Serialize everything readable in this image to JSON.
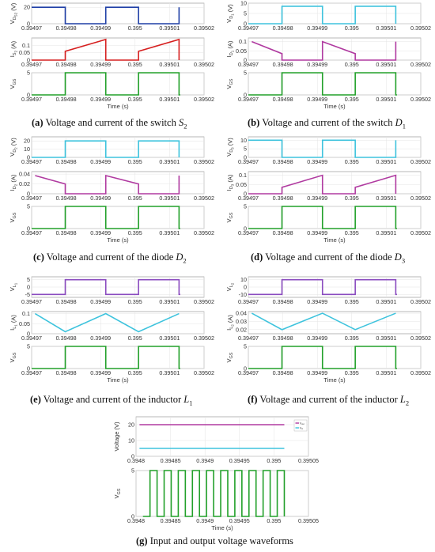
{
  "chart_data": [
    {
      "type": "line",
      "panel": "a",
      "plot": "top",
      "ylabel": {
        "sym": "V",
        "sub": "D",
        "sub2": "S",
        "sub3": "2",
        "unit": "(V)"
      },
      "ylim": [
        0,
        25
      ],
      "yticks": [
        0,
        20
      ],
      "xlim": [
        0.39497,
        0.39502
      ],
      "xticks": [
        "0.39497",
        "0.39498",
        "0.39499",
        "0.395",
        "0.39501",
        "0.39502"
      ],
      "series": [
        {
          "color": "#1f3fa6",
          "shape": "pulse_low",
          "high": 20,
          "low": 0
        }
      ],
      "xlabel": ""
    },
    {
      "type": "line",
      "panel": "a",
      "plot": "mid",
      "ylabel": {
        "sym": "I",
        "sub": "S",
        "sub2": "2",
        "sub3": "",
        "unit": "(A)"
      },
      "ylim": [
        0,
        0.15
      ],
      "yticks": [
        0,
        0.05,
        0.1
      ],
      "xlim": [
        0.39497,
        0.39502
      ],
      "xticks": [
        "0.39497",
        "0.39498",
        "0.39499",
        "0.395",
        "0.39501",
        "0.39502"
      ],
      "series": [
        {
          "color": "#d62020",
          "shape": "ramp_on",
          "start": 0.06,
          "end": 0.14,
          "low": 0
        }
      ],
      "xlabel": ""
    },
    {
      "type": "line",
      "panel": "a",
      "plot": "bot",
      "ylabel": {
        "sym": "V",
        "sub": "GS",
        "sub2": "",
        "sub3": "",
        "unit": ""
      },
      "ylim": [
        0,
        5
      ],
      "yticks": [
        0,
        5
      ],
      "xlim": [
        0.39497,
        0.39502
      ],
      "xticks": [
        "0.39497",
        "0.39498",
        "0.39499",
        "0.395",
        "0.39501",
        "0.39502"
      ],
      "series": [
        {
          "color": "#22a02a",
          "shape": "gate",
          "high": 5,
          "low": 0
        }
      ],
      "xlabel": "Time (s)"
    },
    {
      "type": "line",
      "panel": "b",
      "plot": "top",
      "ylabel": {
        "sym": "V",
        "sub": "D",
        "sub2": "1",
        "sub3": "",
        "unit": "(V)"
      },
      "ylim": [
        0,
        10
      ],
      "yticks": [
        0,
        5,
        10
      ],
      "xlim": [
        0.39497,
        0.39502
      ],
      "xticks": [
        "0.39497",
        "0.39498",
        "0.39499",
        "0.395",
        "0.39501",
        "0.39502"
      ],
      "series": [
        {
          "color": "#3ec3dd",
          "shape": "pulse_high",
          "high": 8.5,
          "low": 0
        }
      ],
      "xlabel": ""
    },
    {
      "type": "line",
      "panel": "b",
      "plot": "mid",
      "ylabel": {
        "sym": "I",
        "sub": "D",
        "sub2": "1",
        "sub3": "",
        "unit": "(A)"
      },
      "ylim": [
        0,
        0.12
      ],
      "yticks": [
        0,
        0.05,
        0.1
      ],
      "xlim": [
        0.39497,
        0.39502
      ],
      "xticks": [
        "0.39497",
        "0.39498",
        "0.39499",
        "0.395",
        "0.39501",
        "0.39502"
      ],
      "series": [
        {
          "color": "#b03aa0",
          "shape": "ramp_off",
          "start": 0.1,
          "end": 0.035,
          "low": 0
        }
      ],
      "xlabel": ""
    },
    {
      "type": "line",
      "panel": "b",
      "plot": "bot",
      "ylabel": {
        "sym": "V",
        "sub": "GS",
        "sub2": "",
        "sub3": "",
        "unit": ""
      },
      "ylim": [
        0,
        5
      ],
      "yticks": [
        0,
        5
      ],
      "xlim": [
        0.39497,
        0.39502
      ],
      "xticks": [
        "0.39497",
        "0.39498",
        "0.39499",
        "0.395",
        "0.39501",
        "0.39502"
      ],
      "series": [
        {
          "color": "#22a02a",
          "shape": "gate",
          "high": 5,
          "low": 0
        }
      ],
      "xlabel": "Time (s)"
    },
    {
      "type": "line",
      "panel": "c",
      "plot": "top",
      "ylabel": {
        "sym": "V",
        "sub": "D",
        "sub2": "2",
        "sub3": "",
        "unit": "(V)"
      },
      "ylim": [
        0,
        25
      ],
      "yticks": [
        0,
        10,
        20
      ],
      "xlim": [
        0.39497,
        0.39502
      ],
      "xticks": [
        "0.39497",
        "0.39498",
        "0.39499",
        "0.395",
        "0.39501",
        "0.39502"
      ],
      "series": [
        {
          "color": "#3ec3dd",
          "shape": "pulse_high",
          "high": 20,
          "low": 0
        }
      ],
      "xlabel": ""
    },
    {
      "type": "line",
      "panel": "c",
      "plot": "mid",
      "ylabel": {
        "sym": "I",
        "sub": "D",
        "sub2": "2",
        "sub3": "",
        "unit": "(A)"
      },
      "ylim": [
        0,
        0.045
      ],
      "yticks": [
        0,
        0.02,
        0.04
      ],
      "xlim": [
        0.39497,
        0.39502
      ],
      "xticks": [
        "0.39497",
        "0.39498",
        "0.39499",
        "0.395",
        "0.39501",
        "0.39502"
      ],
      "series": [
        {
          "color": "#b03aa0",
          "shape": "ramp_off",
          "start": 0.037,
          "end": 0.02,
          "low": 0
        }
      ],
      "xlabel": ""
    },
    {
      "type": "line",
      "panel": "c",
      "plot": "bot",
      "ylabel": {
        "sym": "V",
        "sub": "GS",
        "sub2": "",
        "sub3": "",
        "unit": ""
      },
      "ylim": [
        0,
        5
      ],
      "yticks": [
        0,
        5
      ],
      "xlim": [
        0.39497,
        0.39502
      ],
      "xticks": [
        "0.39497",
        "0.39498",
        "0.39499",
        "0.395",
        "0.39501",
        "0.39502"
      ],
      "series": [
        {
          "color": "#22a02a",
          "shape": "gate",
          "high": 5,
          "low": 0
        }
      ],
      "xlabel": "Time (s)"
    },
    {
      "type": "line",
      "panel": "d",
      "plot": "top",
      "ylabel": {
        "sym": "V",
        "sub": "D",
        "sub2": "3",
        "sub3": "",
        "unit": "(V)"
      },
      "ylim": [
        0,
        12
      ],
      "yticks": [
        0,
        5,
        10
      ],
      "xlim": [
        0.39497,
        0.39502
      ],
      "xticks": [
        "0.39497",
        "0.39498",
        "0.39499",
        "0.395",
        "0.39501",
        "0.39502"
      ],
      "series": [
        {
          "color": "#3ec3dd",
          "shape": "pulse_low",
          "high": 10,
          "low": 0
        }
      ],
      "xlabel": ""
    },
    {
      "type": "line",
      "panel": "d",
      "plot": "mid",
      "ylabel": {
        "sym": "I",
        "sub": "D",
        "sub2": "3",
        "sub3": "",
        "unit": "(A)"
      },
      "ylim": [
        0,
        0.12
      ],
      "yticks": [
        0,
        0.05,
        0.1
      ],
      "xlim": [
        0.39497,
        0.39502
      ],
      "xticks": [
        "0.39497",
        "0.39498",
        "0.39499",
        "0.395",
        "0.39501",
        "0.39502"
      ],
      "series": [
        {
          "color": "#b03aa0",
          "shape": "ramp_on",
          "start": 0.035,
          "end": 0.1,
          "low": 0
        }
      ],
      "xlabel": ""
    },
    {
      "type": "line",
      "panel": "d",
      "plot": "bot",
      "ylabel": {
        "sym": "V",
        "sub": "GS",
        "sub2": "",
        "sub3": "",
        "unit": ""
      },
      "ylim": [
        0,
        5
      ],
      "yticks": [
        0,
        5
      ],
      "xlim": [
        0.39497,
        0.39502
      ],
      "xticks": [
        "0.39497",
        "0.39498",
        "0.39499",
        "0.395",
        "0.39501",
        "0.39502"
      ],
      "series": [
        {
          "color": "#22a02a",
          "shape": "gate",
          "high": 5,
          "low": 0
        }
      ],
      "xlabel": "Time (s)"
    },
    {
      "type": "line",
      "panel": "e",
      "plot": "top",
      "ylabel": {
        "sym": "V",
        "sub": "L",
        "sub2": "1",
        "sub3": "",
        "unit": ""
      },
      "ylim": [
        -7,
        7
      ],
      "yticks": [
        -5,
        0,
        5
      ],
      "xlim": [
        0.39497,
        0.39502
      ],
      "xticks": [
        "0.39497",
        "0.39498",
        "0.39499",
        "0.395",
        "0.39501",
        "0.39502"
      ],
      "series": [
        {
          "color": "#8a4bbf",
          "shape": "pulse_gate",
          "high": 5,
          "low": -5
        }
      ],
      "xlabel": ""
    },
    {
      "type": "line",
      "panel": "e",
      "plot": "mid",
      "ylabel": {
        "sym": "I",
        "sub": "L",
        "sub2": "1",
        "sub3": "",
        "unit": "(A)"
      },
      "ylim": [
        0,
        0.11
      ],
      "yticks": [
        0,
        0.05,
        0.1
      ],
      "xlim": [
        0.39497,
        0.39502
      ],
      "xticks": [
        "0.39497",
        "0.39498",
        "0.39499",
        "0.395",
        "0.39501",
        "0.39502"
      ],
      "series": [
        {
          "color": "#3ec3dd",
          "shape": "triangle",
          "min": 0.01,
          "max": 0.1
        }
      ],
      "xlabel": ""
    },
    {
      "type": "line",
      "panel": "e",
      "plot": "bot",
      "ylabel": {
        "sym": "V",
        "sub": "GS",
        "sub2": "",
        "sub3": "",
        "unit": ""
      },
      "ylim": [
        0,
        5
      ],
      "yticks": [
        0,
        5
      ],
      "xlim": [
        0.39497,
        0.39502
      ],
      "xticks": [
        "0.39497",
        "0.39498",
        "0.39499",
        "0.395",
        "0.39501",
        "0.39502"
      ],
      "series": [
        {
          "color": "#22a02a",
          "shape": "gate",
          "high": 5,
          "low": 0
        }
      ],
      "xlabel": "Time (s)"
    },
    {
      "type": "line",
      "panel": "f",
      "plot": "top",
      "ylabel": {
        "sym": "V",
        "sub": "L",
        "sub2": "2",
        "sub3": "",
        "unit": ""
      },
      "ylim": [
        -14,
        14
      ],
      "yticks": [
        -10,
        0,
        10
      ],
      "xlim": [
        0.39497,
        0.39502
      ],
      "xticks": [
        "0.39497",
        "0.39498",
        "0.39499",
        "0.395",
        "0.39501",
        "0.39502"
      ],
      "series": [
        {
          "color": "#8a4bbf",
          "shape": "pulse_gate",
          "high": 10,
          "low": -10
        }
      ],
      "xlabel": ""
    },
    {
      "type": "line",
      "panel": "f",
      "plot": "mid",
      "ylabel": {
        "sym": "I",
        "sub": "L",
        "sub2": "2",
        "sub3": "",
        "unit": "(A)"
      },
      "ylim": [
        0.015,
        0.042
      ],
      "yticks": [
        0.02,
        0.03,
        0.04
      ],
      "xlim": [
        0.39497,
        0.39502
      ],
      "xticks": [
        "0.39497",
        "0.39498",
        "0.39499",
        "0.395",
        "0.39501",
        "0.39502"
      ],
      "series": [
        {
          "color": "#3ec3dd",
          "shape": "triangle",
          "min": 0.02,
          "max": 0.04
        }
      ],
      "xlabel": ""
    },
    {
      "type": "line",
      "panel": "f",
      "plot": "bot",
      "ylabel": {
        "sym": "V",
        "sub": "GS",
        "sub2": "",
        "sub3": "",
        "unit": ""
      },
      "ylim": [
        0,
        5
      ],
      "yticks": [
        0,
        5
      ],
      "xlim": [
        0.39497,
        0.39502
      ],
      "xticks": [
        "0.39497",
        "0.39498",
        "0.39499",
        "0.395",
        "0.39501",
        "0.39502"
      ],
      "series": [
        {
          "color": "#22a02a",
          "shape": "gate",
          "high": 5,
          "low": 0
        }
      ],
      "xlabel": "Time (s)"
    },
    {
      "type": "line",
      "panel": "g",
      "plot": "top",
      "ylabel": {
        "sym": "Voltage (V)",
        "sub": "",
        "sub2": "",
        "sub3": "",
        "unit": ""
      },
      "ylim": [
        0,
        25
      ],
      "yticks": [
        0,
        10,
        20
      ],
      "xlim": [
        0.3948,
        0.39505
      ],
      "xticks": [
        "0.3948",
        "0.39485",
        "0.3949",
        "0.39495",
        "0.395",
        "0.39505"
      ],
      "series": [
        {
          "name": "V_out",
          "color": "#b03aa0",
          "shape": "const",
          "value": 20
        },
        {
          "name": "V_in",
          "color": "#3ec3dd",
          "shape": "const",
          "value": 5
        }
      ],
      "legend": [
        "V_out",
        "V_in"
      ],
      "xlabel": ""
    },
    {
      "type": "line",
      "panel": "g",
      "plot": "bot",
      "ylabel": {
        "sym": "V",
        "sub": "GS",
        "sub2": "",
        "sub3": "",
        "unit": ""
      },
      "ylim": [
        0,
        5
      ],
      "yticks": [
        0,
        5
      ],
      "xlim": [
        0.3948,
        0.39505
      ],
      "xticks": [
        "0.3948",
        "0.39485",
        "0.3949",
        "0.39495",
        "0.395",
        "0.39505"
      ],
      "series": [
        {
          "color": "#22a02a",
          "shape": "gate_many",
          "high": 5,
          "low": 0,
          "periods": 10
        }
      ],
      "xlabel": "Time (s)"
    }
  ],
  "captions": {
    "a": {
      "letter": "(a)",
      "text": "Voltage and current of the switch ",
      "var": "S",
      "sub": "2"
    },
    "b": {
      "letter": "(b)",
      "text": "Voltage and current of the switch ",
      "var": "D",
      "sub": "1"
    },
    "c": {
      "letter": "(c)",
      "text": "Voltage and current of the diode ",
      "var": "D",
      "sub": "2"
    },
    "d": {
      "letter": "(d)",
      "text": "Voltage and current of the diode ",
      "var": "D",
      "sub": "3"
    },
    "e": {
      "letter": "(e)",
      "text": "Voltage and current of the inductor ",
      "var": "L",
      "sub": "1"
    },
    "f": {
      "letter": "(f)",
      "text": "Voltage and current of the inductor ",
      "var": "L",
      "sub": "2"
    },
    "g": {
      "letter": "(g)",
      "text": "Input and output voltage waveforms",
      "var": "",
      "sub": ""
    }
  }
}
